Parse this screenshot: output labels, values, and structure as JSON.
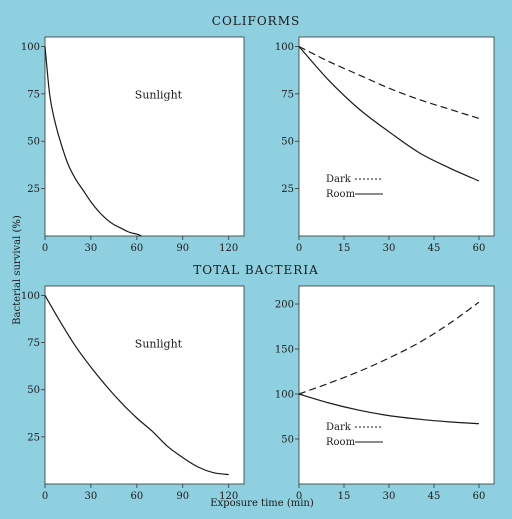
{
  "figure": {
    "section_titles": [
      "COLIFORMS",
      "TOTAL BACTERIA"
    ],
    "ylabel": "Bacterial survival (%)",
    "xlabel": "Exposure time (min)"
  },
  "chart_data": [
    {
      "type": "line",
      "section": "COLIFORMS",
      "annotation": "Sunlight",
      "xlim": [
        0,
        130
      ],
      "ylim": [
        0,
        105
      ],
      "xticks": [
        0,
        30,
        60,
        90,
        120
      ],
      "yticks": [
        25,
        50,
        75,
        100
      ],
      "series": [
        {
          "style": "solid",
          "x": [
            0,
            3,
            6,
            10,
            15,
            20,
            25,
            30,
            35,
            40,
            45,
            50,
            55,
            60,
            63
          ],
          "y": [
            100,
            75,
            62,
            50,
            38,
            30,
            24,
            18,
            13,
            9,
            6,
            4,
            2,
            1,
            0
          ]
        }
      ]
    },
    {
      "type": "line",
      "section": "COLIFORMS",
      "xlim": [
        0,
        65
      ],
      "ylim": [
        0,
        105
      ],
      "xticks": [
        0,
        15,
        30,
        45,
        60
      ],
      "yticks": [
        25,
        50,
        75,
        100
      ],
      "legend_entries": [
        "Dark",
        "Room"
      ],
      "series": [
        {
          "name": "Dark",
          "style": "dashed",
          "x": [
            0,
            10,
            20,
            30,
            40,
            50,
            60
          ],
          "y": [
            100,
            92,
            85,
            78,
            72,
            67,
            62
          ]
        },
        {
          "name": "Room",
          "style": "solid",
          "x": [
            0,
            10,
            20,
            30,
            40,
            50,
            60
          ],
          "y": [
            100,
            82,
            67,
            55,
            44,
            36,
            29
          ]
        }
      ]
    },
    {
      "type": "line",
      "section": "TOTAL BACTERIA",
      "annotation": "Sunlight",
      "xlim": [
        0,
        130
      ],
      "ylim": [
        0,
        105
      ],
      "xticks": [
        0,
        30,
        60,
        90,
        120
      ],
      "yticks": [
        25,
        50,
        75,
        100
      ],
      "series": [
        {
          "style": "solid",
          "x": [
            0,
            10,
            20,
            30,
            40,
            50,
            60,
            70,
            80,
            90,
            100,
            110,
            120
          ],
          "y": [
            100,
            86,
            73,
            62,
            52,
            43,
            35,
            28,
            20,
            14,
            9,
            6,
            5
          ]
        }
      ]
    },
    {
      "type": "line",
      "section": "TOTAL BACTERIA",
      "xlim": [
        0,
        65
      ],
      "ylim": [
        0,
        220
      ],
      "xticks": [
        0,
        15,
        30,
        45,
        60
      ],
      "yticks": [
        50,
        100,
        150,
        200
      ],
      "legend_entries": [
        "Dark",
        "Room"
      ],
      "series": [
        {
          "name": "Dark",
          "style": "dashed",
          "x": [
            0,
            10,
            20,
            30,
            40,
            50,
            60
          ],
          "y": [
            100,
            112,
            125,
            140,
            157,
            178,
            202
          ]
        },
        {
          "name": "Room",
          "style": "solid",
          "x": [
            0,
            10,
            20,
            30,
            40,
            50,
            60
          ],
          "y": [
            100,
            90,
            82,
            76,
            72,
            69,
            67
          ]
        }
      ]
    }
  ]
}
